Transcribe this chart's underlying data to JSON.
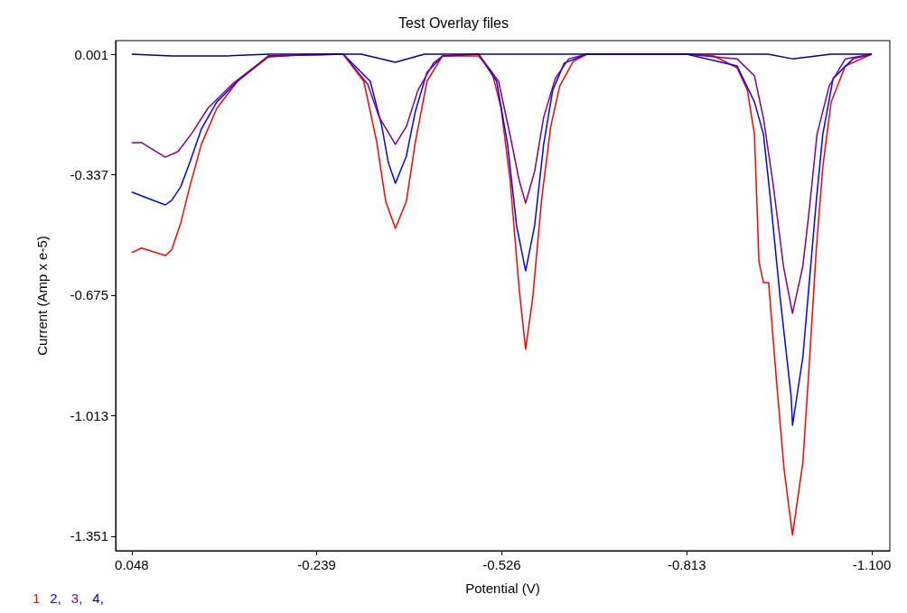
{
  "chart_data": {
    "type": "line",
    "title": "Test Overlay files",
    "xlabel": "Potential (V)",
    "ylabel": "Current (Amp x e-5)",
    "xlim": [
      0.073,
      -1.128
    ],
    "ylim": [
      -1.392,
      0.039
    ],
    "xticks": [
      0.048,
      -0.239,
      -0.526,
      -0.813,
      {
        "value": -1.1,
        "label": "-1.100"
      }
    ],
    "yticks": [
      0.001,
      -0.337,
      -0.675,
      -1.013,
      -1.351
    ],
    "grid": false,
    "legend": "bottom left",
    "marker": "none",
    "line_style": "solid",
    "series": [
      {
        "name": "1",
        "color": "#ff0000",
        "x": [
          0.048,
          0.033,
          -0.004,
          -0.014,
          -0.028,
          -0.042,
          -0.06,
          -0.084,
          -0.116,
          -0.164,
          -0.224,
          -0.28,
          -0.312,
          -0.332,
          -0.346,
          -0.361,
          -0.378,
          -0.392,
          -0.41,
          -0.434,
          -0.49,
          -0.511,
          -0.525,
          -0.539,
          -0.553,
          -0.563,
          -0.574,
          -0.588,
          -0.602,
          -0.616,
          -0.637,
          -0.658,
          -0.813,
          -0.855,
          -0.891,
          -0.907,
          -0.918,
          -0.925,
          -0.932,
          -0.94,
          -0.952,
          -0.964,
          -0.977,
          -0.993,
          -1.003,
          -1.014,
          -1.024,
          -1.037,
          -1.059,
          -1.1
        ],
        "values": [
          -0.556,
          -0.543,
          -0.564,
          -0.548,
          -0.473,
          -0.371,
          -0.252,
          -0.151,
          -0.075,
          -0.007,
          0.001,
          0.001,
          -0.075,
          -0.245,
          -0.412,
          -0.488,
          -0.412,
          -0.245,
          -0.075,
          -0.004,
          -0.004,
          -0.05,
          -0.151,
          -0.353,
          -0.657,
          -0.827,
          -0.683,
          -0.404,
          -0.202,
          -0.088,
          -0.019,
          0.001,
          0.001,
          -0.004,
          -0.037,
          -0.1,
          -0.224,
          -0.581,
          -0.64,
          -0.64,
          -0.911,
          -1.164,
          -1.348,
          -1.146,
          -0.87,
          -0.545,
          -0.316,
          -0.133,
          -0.032,
          0.001
        ]
      },
      {
        "name": "2,",
        "color": "#0000ff",
        "x": [
          0.048,
          -0.004,
          -0.014,
          -0.028,
          -0.042,
          -0.06,
          -0.084,
          -0.116,
          -0.164,
          -0.28,
          -0.322,
          -0.34,
          -0.35,
          -0.361,
          -0.378,
          -0.392,
          -0.41,
          -0.434,
          -0.49,
          -0.518,
          -0.535,
          -0.549,
          -0.563,
          -0.577,
          -0.591,
          -0.605,
          -0.623,
          -0.658,
          -0.813,
          -0.891,
          -0.918,
          -0.932,
          -0.943,
          -0.958,
          -0.975,
          -0.977,
          -0.993,
          -1.003,
          -1.014,
          -1.024,
          -1.04,
          -1.071,
          -1.1
        ],
        "values": [
          -0.386,
          -0.422,
          -0.409,
          -0.371,
          -0.303,
          -0.209,
          -0.133,
          -0.075,
          -0.004,
          0.001,
          -0.075,
          -0.202,
          -0.303,
          -0.361,
          -0.285,
          -0.159,
          -0.05,
          -0.004,
          0.001,
          -0.075,
          -0.252,
          -0.48,
          -0.607,
          -0.48,
          -0.252,
          -0.1,
          -0.024,
          0.001,
          0.001,
          -0.032,
          -0.133,
          -0.224,
          -0.409,
          -0.685,
          -0.961,
          -1.04,
          -0.85,
          -0.64,
          -0.409,
          -0.224,
          -0.067,
          -0.012,
          0.001
        ]
      },
      {
        "name": "3,",
        "color": "#800080",
        "x": [
          0.048,
          0.033,
          -0.004,
          -0.024,
          -0.046,
          -0.07,
          -0.108,
          -0.164,
          -0.28,
          -0.318,
          -0.336,
          -0.361,
          -0.378,
          -0.396,
          -0.42,
          -0.434,
          -0.49,
          -0.521,
          -0.539,
          -0.553,
          -0.563,
          -0.577,
          -0.591,
          -0.609,
          -0.63,
          -0.658,
          -0.813,
          -0.891,
          -0.918,
          -0.932,
          -0.947,
          -0.963,
          -0.977,
          -0.993,
          -1.003,
          -1.015,
          -1.034,
          -1.059,
          -1.1
        ],
        "values": [
          -0.247,
          -0.247,
          -0.288,
          -0.272,
          -0.219,
          -0.151,
          -0.083,
          -0.004,
          0.001,
          -0.083,
          -0.176,
          -0.252,
          -0.202,
          -0.1,
          -0.024,
          -0.004,
          0.001,
          -0.075,
          -0.227,
          -0.353,
          -0.417,
          -0.328,
          -0.176,
          -0.067,
          -0.012,
          0.001,
          0.001,
          -0.012,
          -0.06,
          -0.179,
          -0.364,
          -0.594,
          -0.726,
          -0.594,
          -0.437,
          -0.224,
          -0.088,
          -0.012,
          0.001
        ]
      },
      {
        "name": "4,",
        "color": "#00008b",
        "x": [
          0.048,
          -0.014,
          -0.098,
          -0.164,
          -0.308,
          -0.361,
          -0.406,
          -0.939,
          -0.977,
          -1.037,
          -1.1
        ],
        "values": [
          0.001,
          -0.004,
          -0.004,
          0.001,
          0.001,
          -0.022,
          0.001,
          0.001,
          -0.012,
          0.001,
          0.001
        ]
      }
    ]
  }
}
